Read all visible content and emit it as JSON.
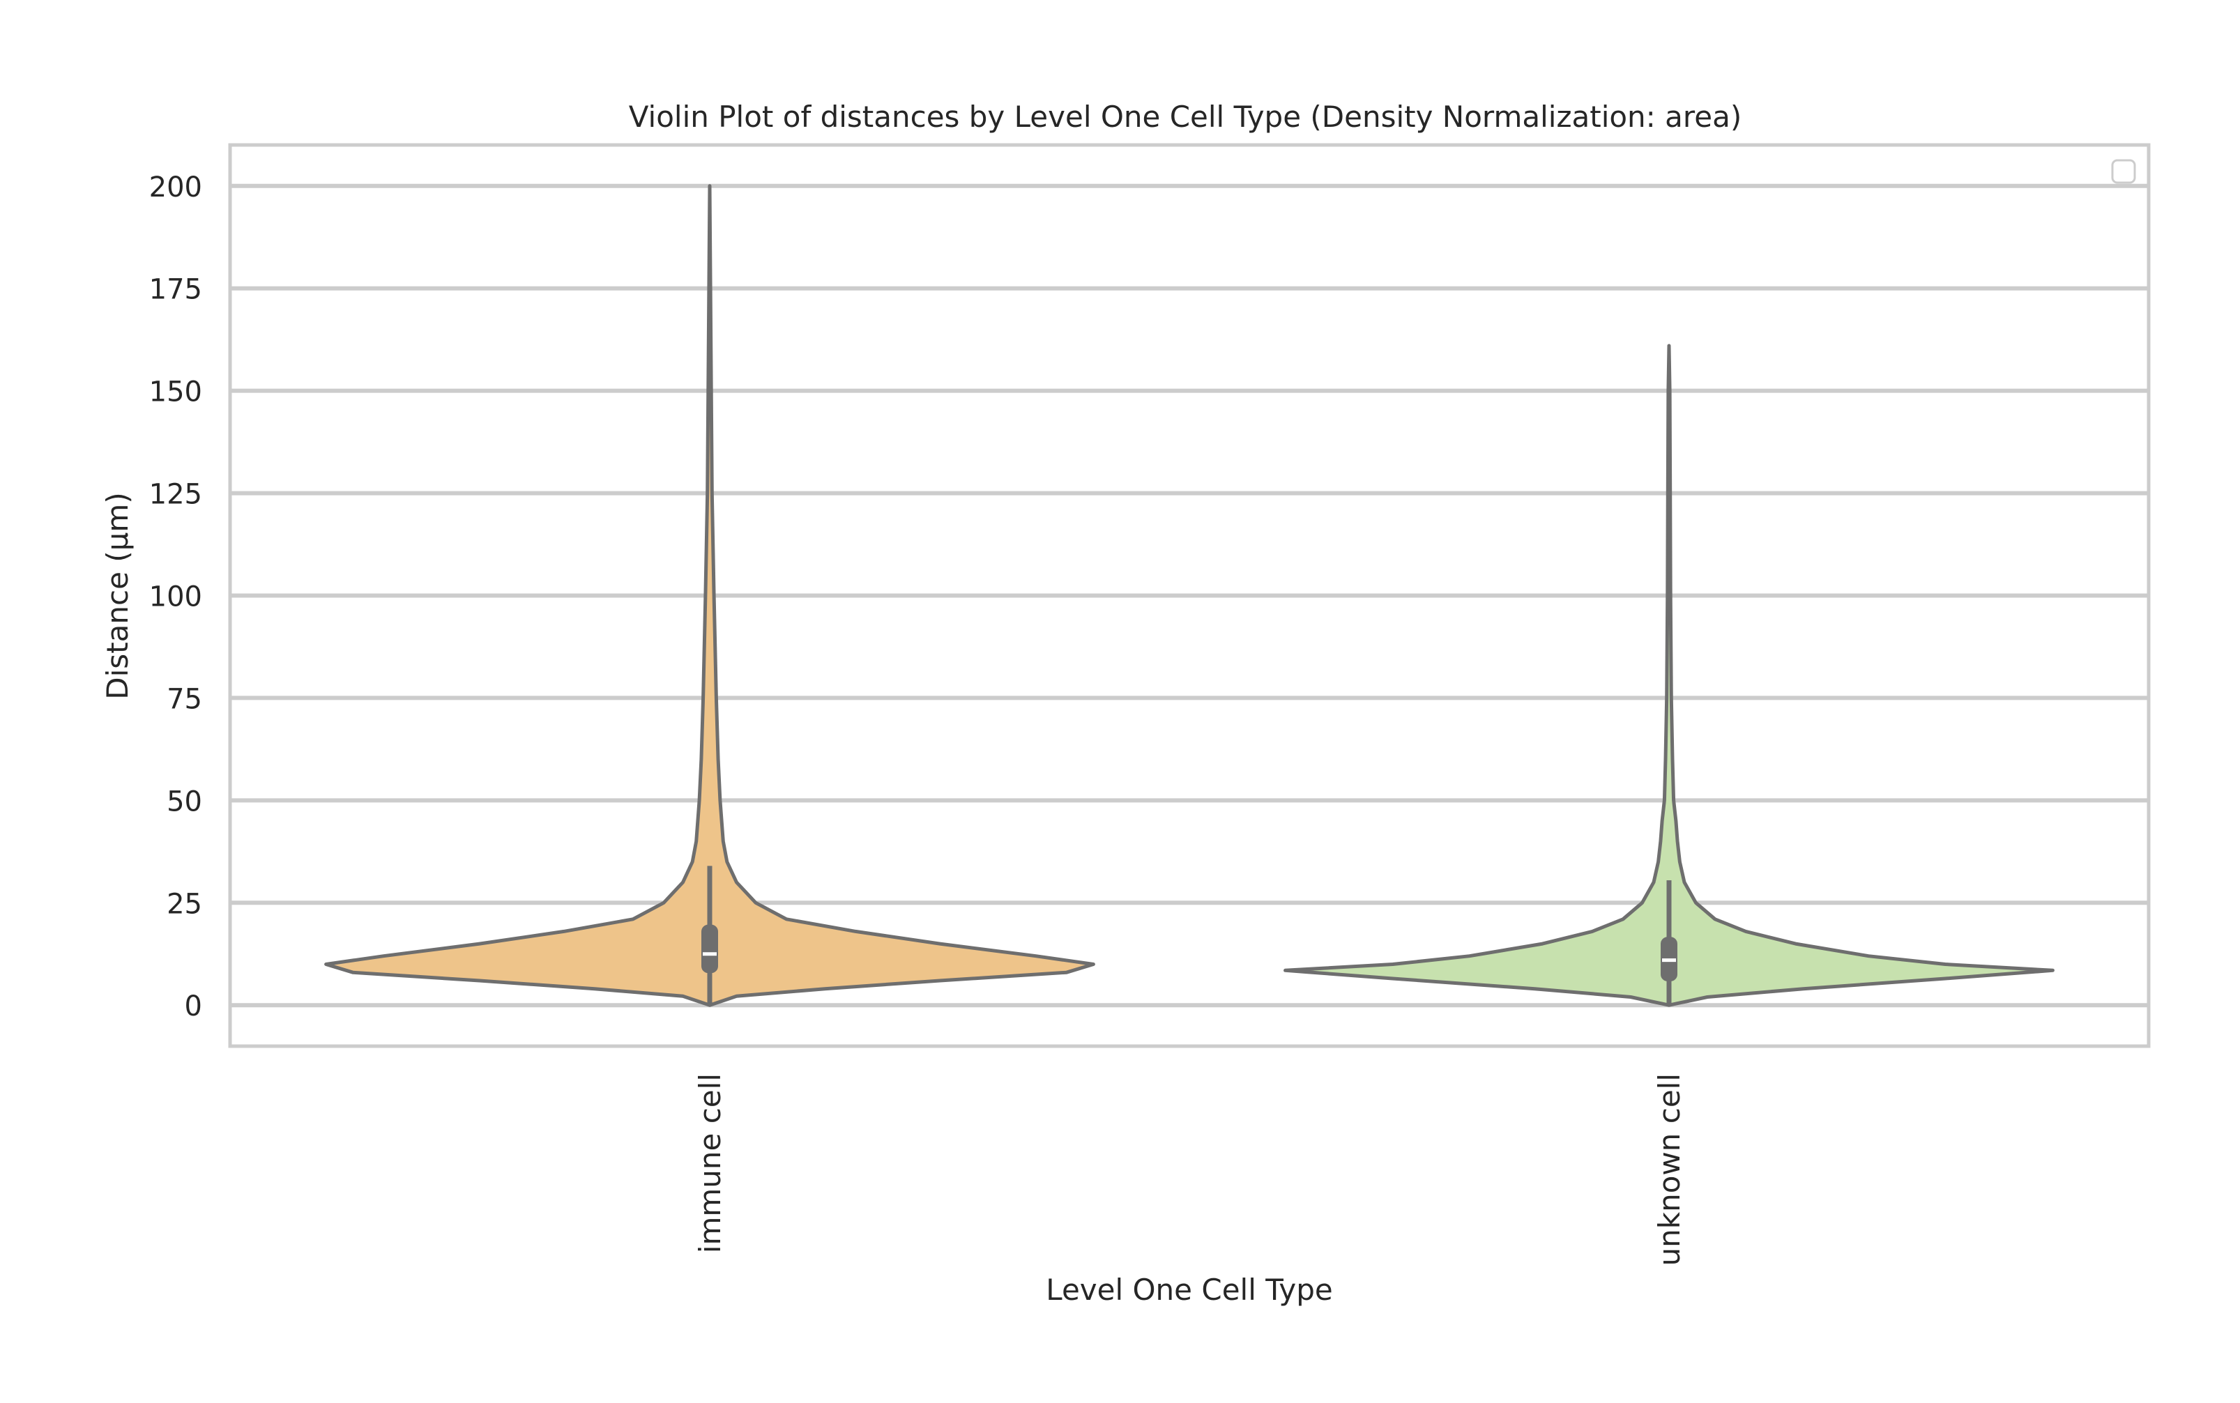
{
  "chart_data": {
    "type": "violin",
    "title": "Violin Plot of distances by Level One Cell Type (Density Normalization: area)",
    "xlabel": "Level One Cell Type",
    "ylabel": "Distance (μm)",
    "categories": [
      "immune cell",
      "unknown cell"
    ],
    "ylim": [
      -10,
      210
    ],
    "yticks": [
      0,
      25,
      50,
      75,
      100,
      125,
      150,
      175,
      200
    ],
    "grid": true,
    "legend": "top-right, empty",
    "series": [
      {
        "category": "immune cell",
        "color": "#eec48a",
        "stroke": "#6e6e6e",
        "min": 0,
        "max": 200,
        "q1": 8,
        "median": 12.5,
        "q3": 19.5,
        "whisker_low": 0,
        "whisker_high": 34,
        "density": [
          [
            0,
            0.0
          ],
          [
            2.2,
            0.07
          ],
          [
            4,
            0.3
          ],
          [
            6,
            0.6
          ],
          [
            8,
            0.93
          ],
          [
            10,
            1.0
          ],
          [
            12,
            0.85
          ],
          [
            15,
            0.6
          ],
          [
            18,
            0.38
          ],
          [
            21,
            0.2
          ],
          [
            25,
            0.12
          ],
          [
            30,
            0.07
          ],
          [
            35,
            0.045
          ],
          [
            40,
            0.035
          ],
          [
            50,
            0.027
          ],
          [
            60,
            0.022
          ],
          [
            75,
            0.017
          ],
          [
            100,
            0.011
          ],
          [
            125,
            0.006
          ],
          [
            150,
            0.004
          ],
          [
            175,
            0.002
          ],
          [
            200,
            0.0
          ]
        ]
      },
      {
        "category": "unknown cell",
        "color": "#c7e1ae",
        "stroke": "#6e6e6e",
        "min": 0,
        "max": 161,
        "q1": 6,
        "median": 11,
        "q3": 16.5,
        "whisker_low": 0,
        "whisker_high": 30.5,
        "density": [
          [
            0,
            0.0
          ],
          [
            2,
            0.1
          ],
          [
            4,
            0.35
          ],
          [
            6.5,
            0.72
          ],
          [
            8.5,
            1.0
          ],
          [
            10,
            0.72
          ],
          [
            12,
            0.52
          ],
          [
            15,
            0.33
          ],
          [
            18,
            0.2
          ],
          [
            21,
            0.12
          ],
          [
            25,
            0.07
          ],
          [
            30,
            0.04
          ],
          [
            35,
            0.028
          ],
          [
            40,
            0.022
          ],
          [
            45,
            0.018
          ],
          [
            50,
            0.012
          ],
          [
            60,
            0.009
          ],
          [
            75,
            0.006
          ],
          [
            100,
            0.004
          ],
          [
            125,
            0.003
          ],
          [
            150,
            0.002
          ],
          [
            161,
            0.0
          ]
        ]
      }
    ]
  }
}
